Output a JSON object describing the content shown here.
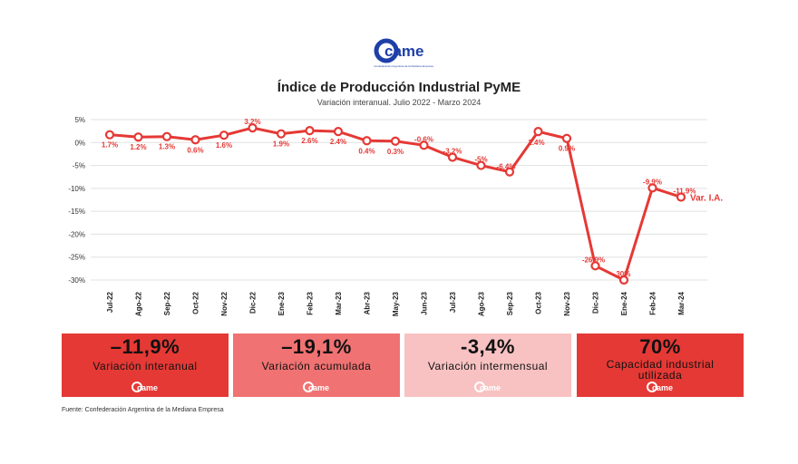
{
  "brand": {
    "logo_text": "came",
    "logo_tagline": "Confederación Argentina de la Mediana Empresa",
    "red": "#e53935"
  },
  "title": "Índice de Producción Industrial PyME",
  "subtitle": "Variación interanual. Julio 2022 - Marzo 2024",
  "chart_data": {
    "type": "line",
    "categories": [
      "Jul-22",
      "Ago-22",
      "Sep-22",
      "Oct-22",
      "Nov-22",
      "Dic-22",
      "Ene-23",
      "Feb-23",
      "Mar-23",
      "Abr-23",
      "May-23",
      "Jun-23",
      "Jul-23",
      "Ago-23",
      "Sep-23",
      "Oct-23",
      "Nov-23",
      "Dic-23",
      "Ene-24",
      "Feb-24",
      "Mar-24"
    ],
    "series": [
      {
        "name": "Var. I.A.",
        "values": [
          1.7,
          1.2,
          1.3,
          0.6,
          1.6,
          3.2,
          1.9,
          2.6,
          2.4,
          0.4,
          0.3,
          -0.6,
          -3.2,
          -5,
          -6.4,
          2.4,
          0.9,
          -26.9,
          -30,
          -9.9,
          -11.9
        ],
        "labels": [
          "1.7%",
          "1.2%",
          "1.3%",
          "0.6%",
          "1.6%",
          "3.2%",
          "1.9%",
          "2.6%",
          "2.4%",
          "0.4%",
          "0.3%",
          "-0.6%",
          "-3.2%",
          "-5%",
          "-6.4%",
          "2.4%",
          "0.9%",
          "-26.9%",
          "-30%",
          "-9.9%",
          "-11.9%"
        ],
        "color": "#e53935"
      }
    ],
    "yticks": [
      5,
      0,
      -5,
      -10,
      -15,
      -20,
      -25,
      -30
    ],
    "ytick_labels": [
      "5%",
      "0%",
      "-5%",
      "-10%",
      "-15%",
      "-20%",
      "-25%",
      "-30%"
    ],
    "ylim": [
      -32,
      6
    ],
    "grid": true
  },
  "cards": [
    {
      "value": "–11,9%",
      "label": "Variación interanual",
      "bg": "#e53935",
      "fg": "#111111"
    },
    {
      "value": "–19,1%",
      "label": "Variación acumulada",
      "bg": "#f07272",
      "fg": "#111111"
    },
    {
      "value": "-3,4%",
      "label": "Variación intermensual",
      "bg": "#f8c2c2",
      "fg": "#111111"
    },
    {
      "value": "70%",
      "label": "Capacidad industrial\nutilizada",
      "bg": "#e53935",
      "fg": "#111111"
    }
  ],
  "footnote": "Fuente: Confederación Argentina de la Mediana Empresa"
}
